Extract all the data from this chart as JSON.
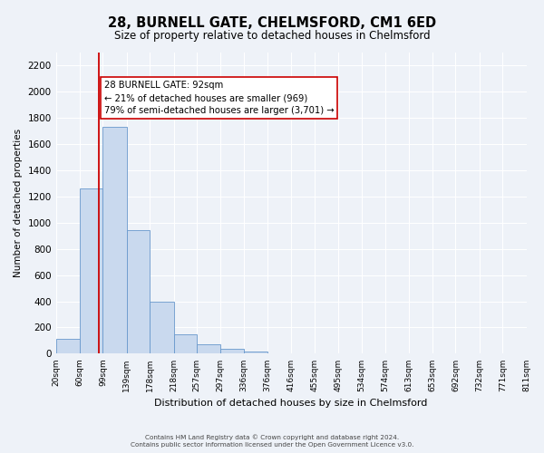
{
  "title": "28, BURNELL GATE, CHELMSFORD, CM1 6ED",
  "subtitle": "Size of property relative to detached houses in Chelmsford",
  "xlabel": "Distribution of detached houses by size in Chelmsford",
  "ylabel": "Number of detached properties",
  "bin_labels": [
    "20sqm",
    "60sqm",
    "99sqm",
    "139sqm",
    "178sqm",
    "218sqm",
    "257sqm",
    "297sqm",
    "336sqm",
    "376sqm",
    "416sqm",
    "455sqm",
    "495sqm",
    "534sqm",
    "574sqm",
    "613sqm",
    "653sqm",
    "692sqm",
    "732sqm",
    "771sqm",
    "811sqm"
  ],
  "bar_values": [
    115,
    1260,
    1730,
    940,
    400,
    150,
    75,
    35,
    20,
    0,
    0,
    0,
    0,
    0,
    0,
    0,
    0,
    0,
    0,
    0
  ],
  "bin_edges": [
    20,
    60,
    99,
    139,
    178,
    218,
    257,
    297,
    336,
    376,
    416,
    455,
    495,
    534,
    574,
    613,
    653,
    692,
    732,
    771,
    811
  ],
  "bar_color": "#c9d9ee",
  "bar_edge_color": "#6898cc",
  "vline_x": 92,
  "vline_color": "#cc0000",
  "annotation_box_color": "#ffffff",
  "annotation_border_color": "#cc0000",
  "annotation_line1": "28 BURNELL GATE: 92sqm",
  "annotation_line2": "← 21% of detached houses are smaller (969)",
  "annotation_line3": "79% of semi-detached houses are larger (3,701) →",
  "ylim": [
    0,
    2300
  ],
  "yticks": [
    0,
    200,
    400,
    600,
    800,
    1000,
    1200,
    1400,
    1600,
    1800,
    2000,
    2200
  ],
  "bg_color": "#eef2f8",
  "grid_color": "#ffffff",
  "footer_line1": "Contains HM Land Registry data © Crown copyright and database right 2024.",
  "footer_line2": "Contains public sector information licensed under the Open Government Licence v3.0."
}
